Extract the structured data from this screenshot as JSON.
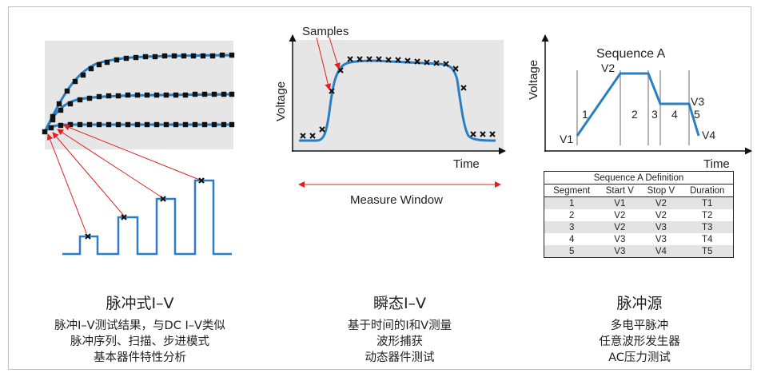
{
  "panel_ramp": {
    "caption_title": "脉冲式I–V",
    "caption_lines": [
      "脉冲I–V测试结果，与DC I–V类似",
      "脉冲序列、扫描、步进模式",
      "基本器件特性分析"
    ]
  },
  "panel_transient": {
    "samples_label": "Samples",
    "y_axis_label": "Voltage",
    "x_axis_label": "Time",
    "measure_window_label": "Measure Window",
    "caption_title": "瞬态I–V",
    "caption_lines": [
      "基于时间的I和V测量",
      "波形捕获",
      "动态器件测试"
    ]
  },
  "panel_source": {
    "sequence_label": "Sequence A",
    "y_axis_label": "Voltage",
    "x_axis_label": "Time",
    "level_labels": [
      "V1",
      "V2",
      "V3",
      "V4"
    ],
    "segment_labels": [
      "1",
      "2",
      "3",
      "4",
      "5"
    ],
    "table": {
      "title": "Sequence A Definition",
      "headers": [
        "Segment",
        "Start V",
        "Stop V",
        "Duration"
      ],
      "rows": [
        [
          "1",
          "V1",
          "V2",
          "T1"
        ],
        [
          "2",
          "V2",
          "V2",
          "T2"
        ],
        [
          "3",
          "V2",
          "V3",
          "T3"
        ],
        [
          "4",
          "V3",
          "V3",
          "T4"
        ],
        [
          "5",
          "V3",
          "V4",
          "T5"
        ]
      ]
    },
    "caption_title": "脉冲源",
    "caption_lines": [
      "多电平脉冲",
      "任意波形发生器",
      "AC压力测试"
    ]
  },
  "colors": {
    "curve": "#2a7fc4",
    "arrow": "#e02020",
    "plot_bg": "#e6e6e6",
    "marker": "#111111"
  }
}
